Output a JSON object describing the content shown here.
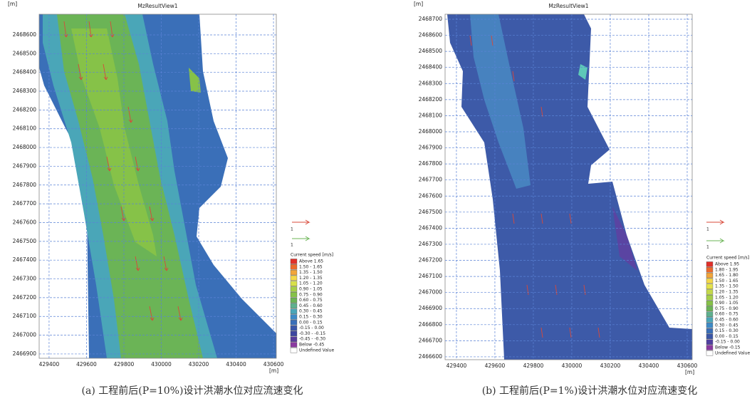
{
  "panels": [
    {
      "title": "MzResultView1",
      "x_unit": "[m]",
      "y_unit": "[m]",
      "xlim": [
        429347,
        430615
      ],
      "ylim": [
        2466877,
        2468710
      ],
      "xticks": [
        429400,
        429600,
        429800,
        430000,
        430200,
        430400,
        430600
      ],
      "yticks": [
        2466900,
        2467000,
        2467100,
        2467200,
        2467300,
        2467400,
        2467500,
        2467600,
        2467700,
        2467800,
        2467900,
        2468000,
        2468100,
        2468200,
        2468300,
        2468400,
        2468500,
        2468600
      ],
      "vector_labels": [
        "1",
        "1"
      ],
      "legend": {
        "title": "Current speed [m/s]",
        "entries": [
          {
            "label": "Above  1.65",
            "color": "#e0302a"
          },
          {
            "label": "1.50 - 1.65",
            "color": "#ec6a2c"
          },
          {
            "label": "1.35 - 1.50",
            "color": "#f2a53a"
          },
          {
            "label": "1.20 - 1.35",
            "color": "#f4d84a"
          },
          {
            "label": "1.05 - 1.20",
            "color": "#d8e04a"
          },
          {
            "label": "0.90 - 1.05",
            "color": "#a6cf48"
          },
          {
            "label": "0.75 - 0.90",
            "color": "#86c248"
          },
          {
            "label": "0.60 - 0.75",
            "color": "#6bb456"
          },
          {
            "label": "0.45 - 0.60",
            "color": "#5eb08e"
          },
          {
            "label": "0.30 - 0.45",
            "color": "#4aa6b8"
          },
          {
            "label": "0.15 - 0.30",
            "color": "#3d8ac6"
          },
          {
            "label": "0.00 - 0.15",
            "color": "#3a6fb8"
          },
          {
            "label": "-0.15 - 0.00",
            "color": "#3a56a8"
          },
          {
            "label": "-0.30 - -0.15",
            "color": "#3d46a0"
          },
          {
            "label": "-0.45 - -0.30",
            "color": "#573c9c"
          },
          {
            "label": "Below -0.45",
            "color": "#8a3aa0"
          },
          {
            "label": "Undefined Value",
            "color": "#ffffff"
          }
        ]
      },
      "caption": "(a) 工程前后(P=10%)设计洪潮水位对应流速变化"
    },
    {
      "title": "MzResultView1",
      "x_unit": "[m]",
      "y_unit": "[m]",
      "xlim": [
        429341,
        430626
      ],
      "ylim": [
        2466582,
        2468731
      ],
      "xticks": [
        429400,
        429600,
        429800,
        430000,
        430200,
        430400,
        430600
      ],
      "yticks": [
        2466600,
        2466700,
        2466800,
        2466900,
        2467000,
        2467100,
        2467200,
        2467300,
        2467400,
        2467500,
        2467600,
        2467700,
        2467800,
        2467900,
        2468000,
        2468100,
        2468200,
        2468300,
        2468400,
        2468500,
        2468600,
        2468700
      ],
      "vector_labels": [
        "1",
        "1"
      ],
      "legend": {
        "title": "Current speed [m/s]",
        "entries": [
          {
            "label": "Above  1.95",
            "color": "#e0302a"
          },
          {
            "label": "1.80 - 1.95",
            "color": "#ec6a2c"
          },
          {
            "label": "1.65 - 1.80",
            "color": "#f2a53a"
          },
          {
            "label": "1.50 - 1.65",
            "color": "#f4d84a"
          },
          {
            "label": "1.35 - 1.50",
            "color": "#e4e24a"
          },
          {
            "label": "1.20 - 1.35",
            "color": "#c4d84a"
          },
          {
            "label": "1.05 - 1.20",
            "color": "#a6cf48"
          },
          {
            "label": "0.90 - 1.05",
            "color": "#86c248"
          },
          {
            "label": "0.75 - 0.90",
            "color": "#6bb456"
          },
          {
            "label": "0.60 - 0.75",
            "color": "#5eb08e"
          },
          {
            "label": "0.45 - 0.60",
            "color": "#4aa6b8"
          },
          {
            "label": "0.30 - 0.45",
            "color": "#3d8ac6"
          },
          {
            "label": "0.15 - 0.30",
            "color": "#3a6fb8"
          },
          {
            "label": "0.00 - 0.15",
            "color": "#3a56a8"
          },
          {
            "label": "-0.15 - 0.00",
            "color": "#5040a0"
          },
          {
            "label": "Below -0.15",
            "color": "#8a3aa0"
          },
          {
            "label": "Undefined Value",
            "color": "#ffffff"
          }
        ]
      },
      "caption": "(b) 工程前后(P=1%)设计洪潮水位对应流速变化"
    }
  ]
}
